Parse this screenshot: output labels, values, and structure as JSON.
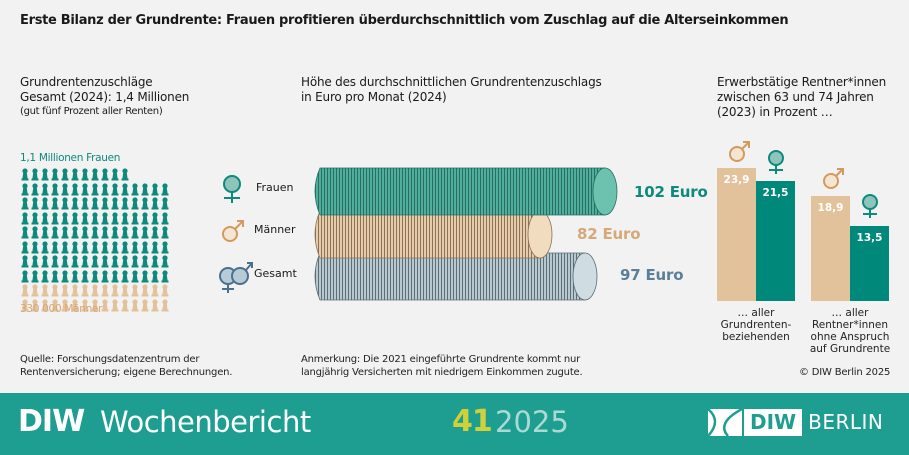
{
  "title": "Erste Bilanz der Grundrente: Frauen profitieren überdurchschnittlich vom Zuschlag auf die Alterseinkommen",
  "panel1": {
    "heading": "Grundrentenzuschläge",
    "subheading": "Gesamt (2024): 1,4 Millionen",
    "note": "(gut fünf Prozent aller Renten)",
    "women_label": "1,1 Millionen Frauen",
    "men_label": "330 000 Männer"
  },
  "panel2": {
    "heading_line1": "Höhe des durchschnittlichen Grundrentenzuschlags",
    "heading_line2": "in Euro pro Monat (2024)"
  },
  "panel3": {
    "heading_line1": "Erwerbstätige Rentner*innen",
    "heading_line2": "zwischen 63 und 74 Jahren",
    "heading_line3": "(2023) in Prozent …",
    "group1_line1": "… aller",
    "group1_line2": "Grundrenten-",
    "group1_line3": "beziehenden",
    "group2_line1": "… aller",
    "group2_line2": "Rentner*innen",
    "group2_line3": "ohne Anspruch",
    "group2_line4": "auf Grundrente"
  },
  "source": {
    "line1": "Quelle: Forschungsdatenzentrum der",
    "line2": "Rentenversicherung; eigene Berechnungen."
  },
  "remark": {
    "line1": "Anmerkung: Die 2021 eingeführte Grundrente kommt nur",
    "line2": "langjährig Versicherten mit niedrigem Einkommen zugute."
  },
  "copyright": "© DIW Berlin 2025",
  "footer": {
    "brand_bold": "DIW",
    "brand_name": "Wochenbericht",
    "issue": "41",
    "year": "2025",
    "logo_diw": "DIW",
    "logo_berlin": "BERLIN"
  },
  "colors": {
    "women": "#0d8a7c",
    "men": "#e2c29a",
    "total": "#c9d9e0",
    "footer": "#1e9e90",
    "issue": "#cfd13a"
  },
  "chart_data": [
    {
      "type": "pictogram",
      "title": "Grundrentenzuschläge Gesamt (2024): 1,4 Millionen",
      "categories": [
        "Frauen",
        "Männer"
      ],
      "values": [
        1100000,
        330000
      ],
      "icons": {
        "Frauen": 116,
        "Männer": 30
      },
      "grid_columns": 15
    },
    {
      "type": "bar",
      "orientation": "horizontal",
      "title": "Höhe des durchschnittlichen Grundrentenzuschlags in Euro pro Monat (2024)",
      "categories": [
        "Frauen",
        "Männer",
        "Gesamt"
      ],
      "values": [
        102,
        82,
        97
      ],
      "value_labels": [
        "102 Euro",
        "82 Euro",
        "97 Euro"
      ],
      "unit": "Euro"
    },
    {
      "type": "bar",
      "title": "Erwerbstätige Rentner*innen zwischen 63 und 74 Jahren (2023) in Prozent …",
      "categories": [
        "… aller Grundrenten-beziehenden",
        "… aller Rentner*innen ohne Anspruch auf Grundrente"
      ],
      "series": [
        {
          "name": "Männer",
          "values": [
            23.9,
            18.9
          ]
        },
        {
          "name": "Frauen",
          "values": [
            21.5,
            13.5
          ]
        }
      ],
      "value_labels": [
        [
          "23,9",
          "18,9"
        ],
        [
          "21,5",
          "13,5"
        ]
      ],
      "ylabel": "Prozent"
    }
  ],
  "labels": {
    "frauen": "Frauen",
    "maenner": "Männer",
    "gesamt": "Gesamt",
    "v_frauen": "102 Euro",
    "v_maenner": "82 Euro",
    "v_gesamt": "97 Euro",
    "b_m1": "23,9",
    "b_f1": "21,5",
    "b_m2": "18,9",
    "b_f2": "13,5"
  }
}
